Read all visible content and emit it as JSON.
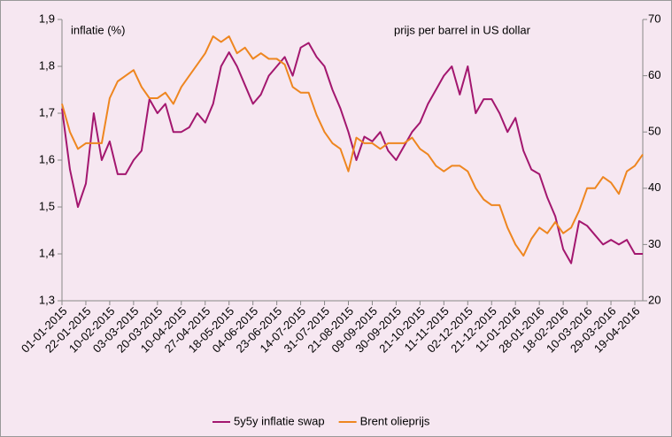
{
  "chart_data": {
    "type": "line",
    "annotations": [
      "inflatie  (%)",
      "prijs per barrel in US dollar"
    ],
    "categories": [
      "01-01-2015",
      null,
      null,
      "22-01-2015",
      null,
      null,
      "10-02-2015",
      null,
      null,
      "03-03-2015",
      null,
      null,
      "20-03-2015",
      null,
      null,
      "10-04-2015",
      null,
      null,
      "27-04-2015",
      null,
      null,
      "18-05-2015",
      null,
      null,
      "04-06-2015",
      null,
      null,
      "23-06-2015",
      null,
      null,
      "14-07-2015",
      null,
      null,
      "31-07-2015",
      null,
      null,
      "21-08-2015",
      null,
      null,
      "09-09-2015",
      null,
      null,
      "30-09-2015",
      null,
      null,
      "21-10-2015",
      null,
      null,
      "11-11-2015",
      null,
      null,
      "02-12-2015",
      null,
      null,
      "21-12-2015",
      null,
      null,
      "11-01-2016",
      null,
      null,
      "28-01-2016",
      null,
      null,
      "18-02-2016",
      null,
      null,
      "10-03-2016",
      null,
      null,
      "29-03-2016",
      null,
      null,
      "19-04-2016",
      null
    ],
    "series": [
      {
        "name": "5y5y inflatie swap",
        "color": "#a3176f",
        "values": [
          1.71,
          1.58,
          1.5,
          1.55,
          1.7,
          1.6,
          1.64,
          1.57,
          1.57,
          1.6,
          1.62,
          1.73,
          1.7,
          1.72,
          1.66,
          1.66,
          1.67,
          1.7,
          1.68,
          1.72,
          1.8,
          1.83,
          1.8,
          1.76,
          1.72,
          1.74,
          1.78,
          1.8,
          1.82,
          1.78,
          1.84,
          1.85,
          1.82,
          1.8,
          1.75,
          1.71,
          1.66,
          1.6,
          1.65,
          1.64,
          1.66,
          1.62,
          1.6,
          1.63,
          1.66,
          1.68,
          1.72,
          1.75,
          1.78,
          1.8,
          1.74,
          1.8,
          1.7,
          1.73,
          1.73,
          1.7,
          1.66,
          1.69,
          1.62,
          1.58,
          1.57,
          1.52,
          1.48,
          1.41,
          1.38,
          1.47,
          1.46,
          1.44,
          1.42,
          1.43,
          1.42,
          1.43,
          1.4,
          1.4
        ]
      },
      {
        "name": "Brent olieprijs",
        "color": "#ee8620",
        "axis": "y2",
        "values": [
          55,
          50,
          47,
          48,
          48,
          48,
          56,
          59,
          60,
          61,
          58,
          56,
          56,
          57,
          55,
          58,
          60,
          62,
          64,
          67,
          66,
          67,
          64,
          65,
          63,
          64,
          63,
          63,
          62,
          58,
          57,
          57,
          53,
          50,
          48,
          47,
          43,
          49,
          48,
          48,
          47,
          48,
          48,
          48,
          49,
          47,
          46,
          44,
          43,
          44,
          44,
          43,
          40,
          38,
          37,
          37,
          33,
          30,
          28,
          31,
          33,
          32,
          34,
          32,
          33,
          36,
          40,
          40,
          42,
          41,
          39,
          43,
          44,
          46
        ]
      }
    ],
    "ylim": [
      1.3,
      1.9
    ],
    "yticks": [
      {
        "value": 1.3,
        "label": "1,3"
      },
      {
        "value": 1.4,
        "label": "1,4"
      },
      {
        "value": 1.5,
        "label": "1,5"
      },
      {
        "value": 1.6,
        "label": "1,6"
      },
      {
        "value": 1.7,
        "label": "1,7"
      },
      {
        "value": 1.8,
        "label": "1,8"
      },
      {
        "value": 1.9,
        "label": "1,9"
      }
    ],
    "y2lim": [
      20,
      70
    ],
    "y2ticks": [
      20,
      30,
      40,
      50,
      60,
      70
    ],
    "legend": "bottom"
  }
}
